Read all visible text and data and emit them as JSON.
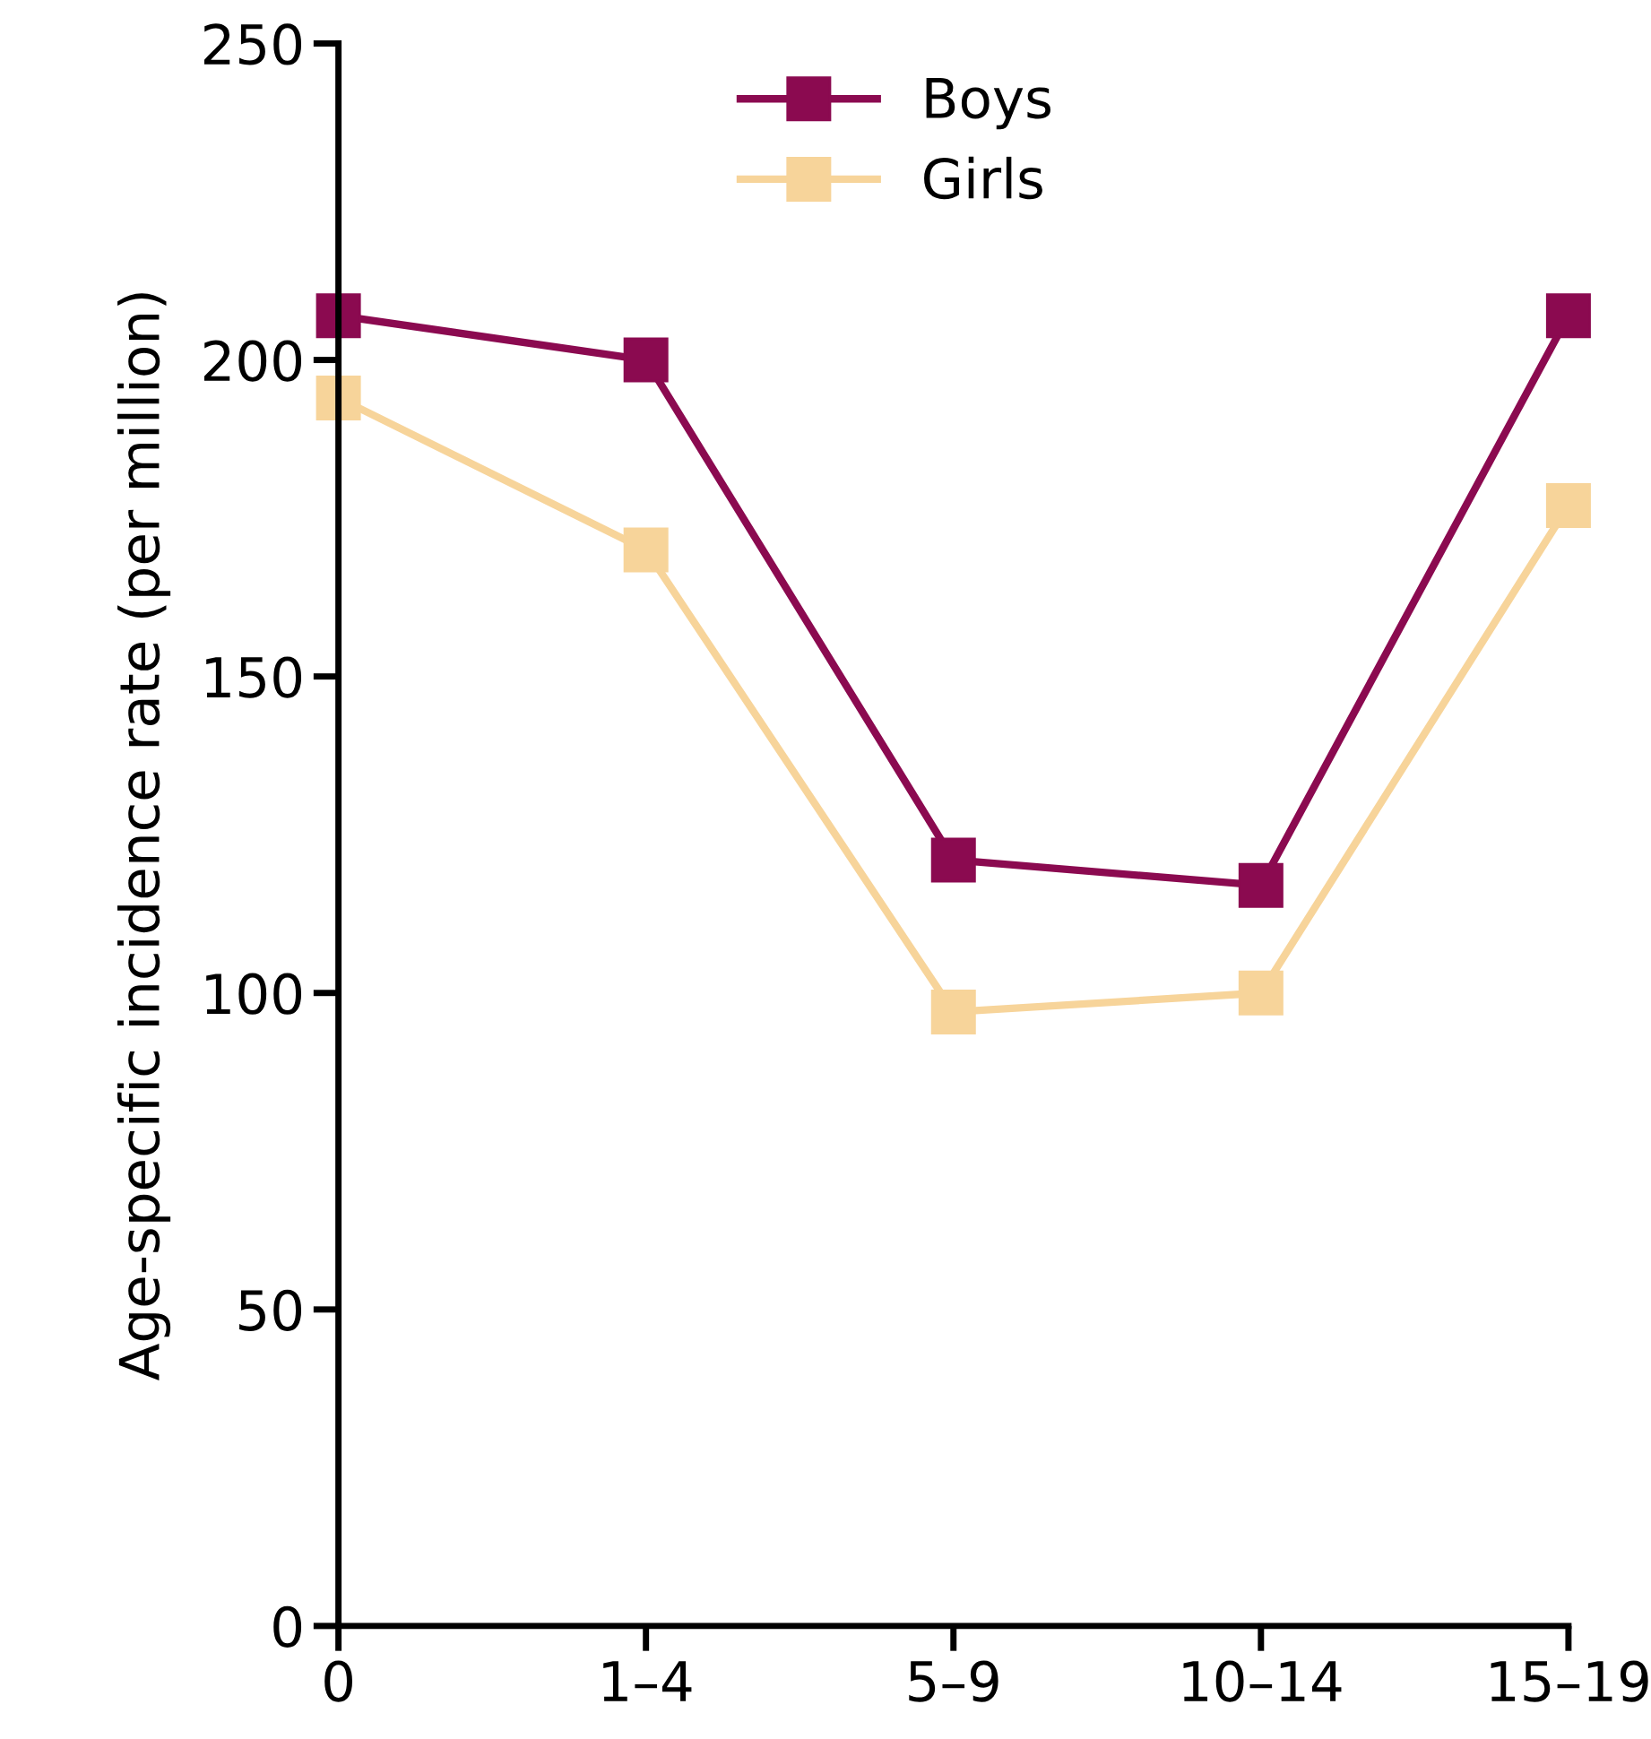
{
  "chart_data": {
    "type": "line",
    "ylabel": "Age-specific incidence rate (per million)",
    "categories": [
      "0",
      "1–4",
      "5–9",
      "10–14",
      "15–19"
    ],
    "series": [
      {
        "name": "Boys",
        "color": "#8b0a50",
        "values": [
          207,
          200,
          121,
          117,
          207
        ]
      },
      {
        "name": "Girls",
        "color": "#f7d49a",
        "values": [
          194,
          170,
          97,
          100,
          177
        ]
      }
    ],
    "ylim": [
      0,
      250
    ],
    "yticks": [
      0,
      50,
      100,
      150,
      200,
      250
    ],
    "marker": "square",
    "line_style": "solid",
    "grid": false,
    "legend": "top left"
  }
}
